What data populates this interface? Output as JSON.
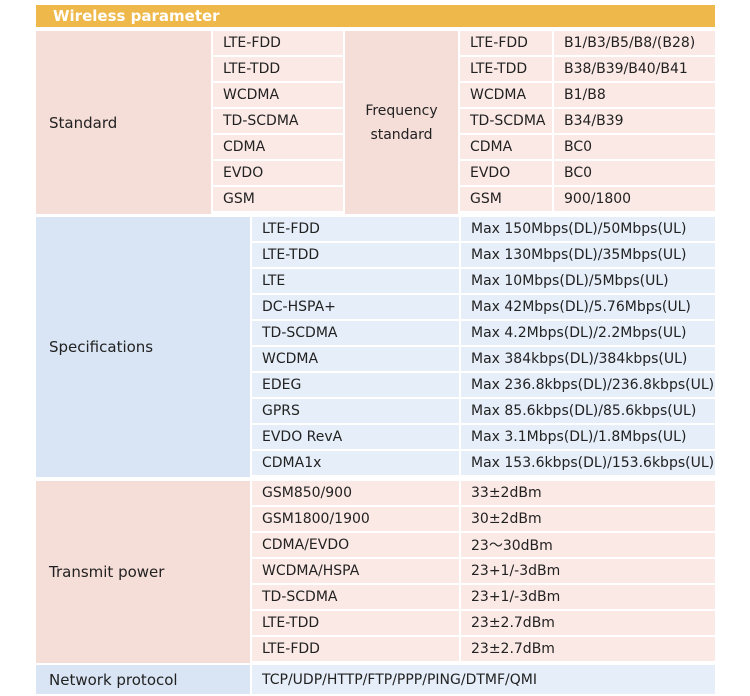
{
  "title": "Wireless parameter",
  "standard": {
    "label": "Standard",
    "items": [
      "LTE-FDD",
      "LTE-TDD",
      "WCDMA",
      "TD-SCDMA",
      "CDMA",
      "EVDO",
      "GSM"
    ],
    "frequency_label": "Frequency standard",
    "bands": [
      {
        "name": "LTE-FDD",
        "value": "B1/B3/B5/B8/(B28)"
      },
      {
        "name": "LTE-TDD",
        "value": "B38/B39/B40/B41"
      },
      {
        "name": "WCDMA",
        "value": "B1/B8"
      },
      {
        "name": "TD-SCDMA",
        "value": "B34/B39"
      },
      {
        "name": "CDMA",
        "value": "BC0"
      },
      {
        "name": "EVDO",
        "value": "BC0"
      },
      {
        "name": "GSM",
        "value": "900/1800"
      }
    ]
  },
  "specifications": {
    "label": "Specifications",
    "rows": [
      {
        "name": "LTE-FDD",
        "value": "Max 150Mbps(DL)/50Mbps(UL)"
      },
      {
        "name": "LTE-TDD",
        "value": "Max 130Mbps(DL)/35Mbps(UL)"
      },
      {
        "name": "LTE",
        "value": "Max 10Mbps(DL)/5Mbps(UL)"
      },
      {
        "name": "DC-HSPA+",
        "value": "Max 42Mbps(DL)/5.76Mbps(UL)"
      },
      {
        "name": "TD-SCDMA",
        "value": "Max 4.2Mbps(DL)/2.2Mbps(UL)"
      },
      {
        "name": "WCDMA",
        "value": "Max 384kbps(DL)/384kbps(UL)"
      },
      {
        "name": "EDEG",
        "value": "Max 236.8kbps(DL)/236.8kbps(UL)"
      },
      {
        "name": "GPRS",
        "value": "Max 85.6kbps(DL)/85.6kbps(UL)"
      },
      {
        "name": "EVDO RevA",
        "value": "Max 3.1Mbps(DL)/1.8Mbps(UL)"
      },
      {
        "name": "CDMA1x",
        "value": "Max 153.6kbps(DL)/153.6kbps(UL)"
      }
    ]
  },
  "transmit_power": {
    "label": "Transmit power",
    "rows": [
      {
        "name": "GSM850/900",
        "value": "33±2dBm"
      },
      {
        "name": "GSM1800/1900",
        "value": "30±2dBm"
      },
      {
        "name": "CDMA/EVDO",
        "value": "23～30dBm"
      },
      {
        "name": "WCDMA/HSPA",
        "value": "23+1/-3dBm"
      },
      {
        "name": "TD-SCDMA",
        "value": "23+1/-3dBm"
      },
      {
        "name": "LTE-TDD",
        "value": "23±2.7dBm"
      },
      {
        "name": "LTE-FDD",
        "value": "23±2.7dBm"
      }
    ]
  },
  "network_protocol": {
    "label": "Network protocol",
    "value": "TCP/UDP/HTTP/FTP/PPP/PING/DTMF/QMI"
  }
}
